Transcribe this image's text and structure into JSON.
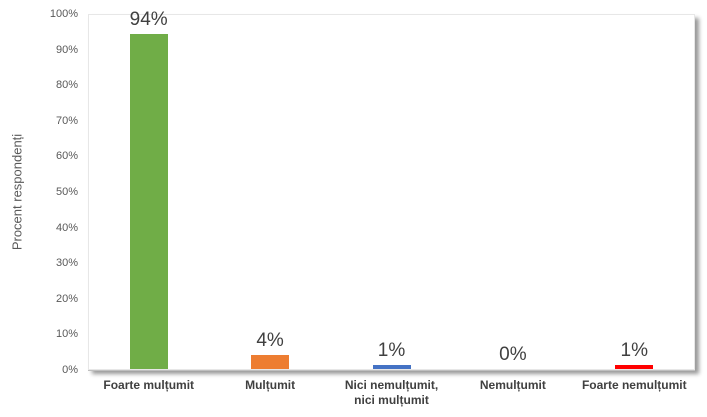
{
  "chart_data": {
    "type": "bar",
    "title": "",
    "xlabel": "",
    "ylabel": "Procent respondenți",
    "ylim": [
      0,
      100
    ],
    "ytick_step": 10,
    "ytick_labels": [
      "0%",
      "10%",
      "20%",
      "30%",
      "40%",
      "50%",
      "60%",
      "70%",
      "80%",
      "90%",
      "100%"
    ],
    "categories": [
      "Foarte mulțumit",
      "Mulțumit",
      "Nici nemulțumit,\nnici mulțumit",
      "Nemulțumit",
      "Foarte nemulțumit"
    ],
    "values": [
      94,
      4,
      1,
      0,
      1
    ],
    "data_labels": [
      "94%",
      "4%",
      "1%",
      "0%",
      "1%"
    ],
    "bar_colors": [
      "#70AD47",
      "#ED7D31",
      "#4472C4",
      null,
      "#FF0000"
    ],
    "grid": false,
    "legend": false,
    "colors": {
      "tick_text": "#595959",
      "axis_title_text": "#595959",
      "data_label_text": "#404040",
      "category_label_text": "#404040",
      "axis_line": "#BFBFBF",
      "plot_border": "#E7E7E7",
      "plot_background": "#FFFFFF"
    }
  }
}
